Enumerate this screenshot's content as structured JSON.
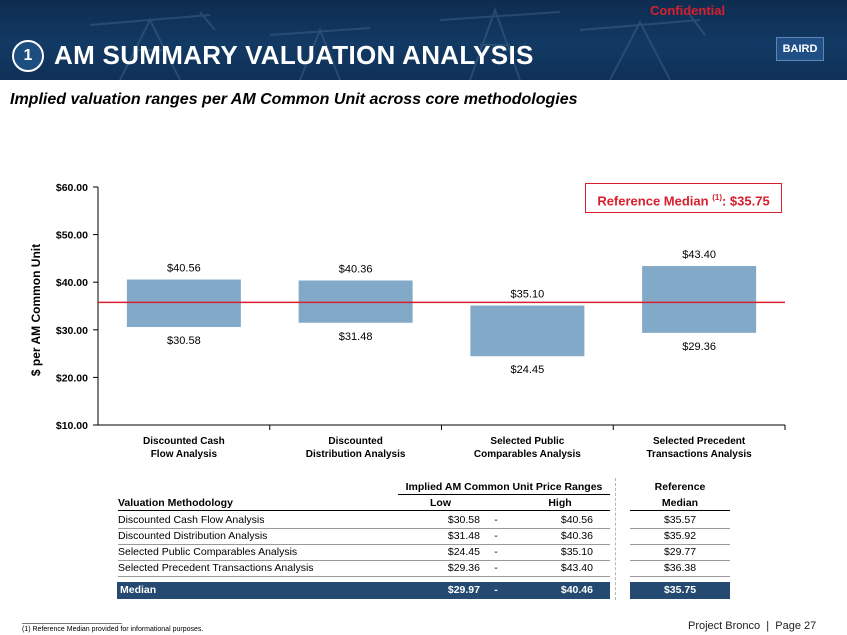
{
  "header": {
    "confidential": "Confidential",
    "section_number": "1",
    "title": "AM SUMMARY VALUATION ANALYSIS",
    "logo": "BAIRD",
    "colors": {
      "navy": "#0e2c4f",
      "red": "#d6202f",
      "bar": "#83a9c8"
    }
  },
  "subtitle": "Implied valuation ranges per AM Common Unit across core methodologies",
  "reference_box": {
    "label": "Reference Median",
    "footnote_ref": "(1)",
    "value": ": $35.75"
  },
  "chart_data": {
    "type": "bar",
    "subtype": "floating-range",
    "ylabel": "$ per AM Common Unit",
    "ylim": [
      10,
      60
    ],
    "yticks": [
      10,
      20,
      30,
      40,
      50,
      60
    ],
    "ytick_labels": [
      "$10.00",
      "$20.00",
      "$30.00",
      "$40.00",
      "$50.00",
      "$60.00"
    ],
    "categories": [
      [
        "Discounted Cash",
        "Flow Analysis"
      ],
      [
        "Discounted",
        "Distribution Analysis"
      ],
      [
        "Selected Public",
        "Comparables Analysis"
      ],
      [
        "Selected Precedent",
        "Transactions Analysis"
      ]
    ],
    "low": [
      30.58,
      31.48,
      24.45,
      29.36
    ],
    "high": [
      40.56,
      40.36,
      35.1,
      43.4
    ],
    "low_labels": [
      "$30.58",
      "$31.48",
      "$24.45",
      "$29.36"
    ],
    "high_labels": [
      "$40.56",
      "$40.36",
      "$35.10",
      "$43.40"
    ],
    "reference_line": 35.75
  },
  "table": {
    "group_header": "Implied AM Common Unit Price Ranges",
    "ref_header": [
      "Reference",
      "Median"
    ],
    "col_method": "Valuation Methodology",
    "col_low": "Low",
    "col_high": "High",
    "rows": [
      {
        "method": "Discounted Cash Flow Analysis",
        "low": "$30.58",
        "sep": "-",
        "high": "$40.56",
        "median": "$35.57"
      },
      {
        "method": "Discounted Distribution Analysis",
        "low": "$31.48",
        "sep": "-",
        "high": "$40.36",
        "median": "$35.92"
      },
      {
        "method": "Selected Public Comparables Analysis",
        "low": "$24.45",
        "sep": "-",
        "high": "$35.10",
        "median": "$29.77"
      },
      {
        "method": "Selected Precedent Transactions Analysis",
        "low": "$29.36",
        "sep": "-",
        "high": "$43.40",
        "median": "$36.38"
      }
    ],
    "median_row": {
      "method": "Median",
      "low": "$29.97",
      "sep": "-",
      "high": "$40.46",
      "median": "$35.75"
    }
  },
  "footnote": "(1)      Reference Median provided for informational purposes.",
  "footer": {
    "project": "Project Bronco",
    "separator": "|",
    "page": "Page 27"
  }
}
